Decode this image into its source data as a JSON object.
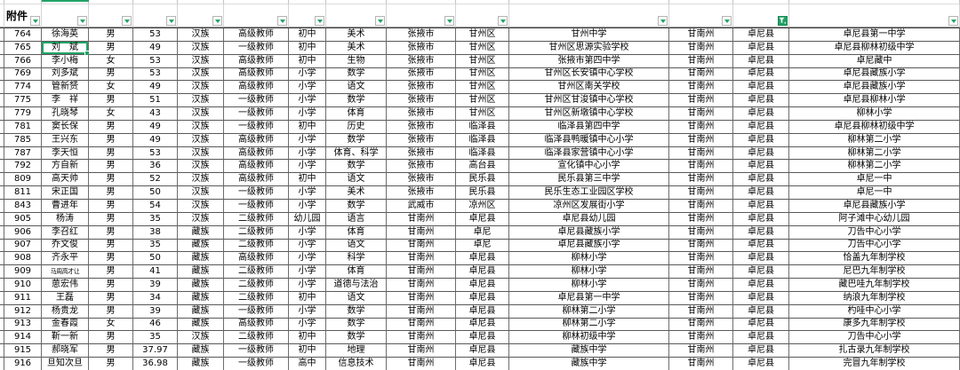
{
  "header": {
    "attachment_label": "附件"
  },
  "filters": {
    "dropdown_count": 14,
    "active_column_index": 12,
    "active_column_value": "卓尼县"
  },
  "selection": {
    "row_index": 1,
    "column_index": 1,
    "row_number": "765"
  },
  "colors": {
    "accent_green": "#21a366"
  },
  "table": {
    "rows": [
      [
        "764",
        "徐海英",
        "男",
        "53",
        "汉族",
        "高级教师",
        "初中",
        "美术",
        "张掖市",
        "甘州区",
        "甘州中学",
        "甘南州",
        "卓尼县",
        "卓尼县第一中学"
      ],
      [
        "765",
        "刘　斌",
        "男",
        "49",
        "汉族",
        "一级教师",
        "初中",
        "美术",
        "张掖市",
        "甘州区",
        "甘州区思源实验学校",
        "甘南州",
        "卓尼县",
        "卓尼县柳林初级中学"
      ],
      [
        "766",
        "李小梅",
        "女",
        "53",
        "汉族",
        "高级教师",
        "初中",
        "生物",
        "张掖市",
        "甘州区",
        "张掖市第四中学",
        "甘南州",
        "卓尼县",
        "卓尼藏中"
      ],
      [
        "769",
        "刘多斌",
        "男",
        "53",
        "汉族",
        "高级教师",
        "小学",
        "数学",
        "张掖市",
        "甘州区",
        "甘州区长安镇中心学校",
        "甘南州",
        "卓尼县",
        "卓尼县藏族小学"
      ],
      [
        "774",
        "管新赟",
        "女",
        "49",
        "汉族",
        "高级教师",
        "小学",
        "语文",
        "张掖市",
        "甘州区",
        "甘州区南关学校",
        "甘南州",
        "卓尼县",
        "卓尼县藏族小学"
      ],
      [
        "775",
        "李　祥",
        "男",
        "51",
        "汉族",
        "一级教师",
        "小学",
        "数学",
        "张掖市",
        "甘州区",
        "甘州区甘浚镇中心学校",
        "甘南州",
        "卓尼县",
        "卓尼县柳林小学"
      ],
      [
        "779",
        "孔晓琴",
        "女",
        "43",
        "汉族",
        "一级教师",
        "小学",
        "体育",
        "张掖市",
        "甘州区",
        "甘州区新墩镇中心学校",
        "甘南州",
        "卓尼县",
        "柳林小学"
      ],
      [
        "781",
        "窦长保",
        "男",
        "49",
        "汉族",
        "一级教师",
        "初中",
        "历史",
        "张掖市",
        "临泽县",
        "临泽县第四中学",
        "甘南州",
        "卓尼县",
        "卓尼县柳林初级中学"
      ],
      [
        "785",
        "王兴东",
        "男",
        "49",
        "汉族",
        "高级教师",
        "小学",
        "数学",
        "张掖市",
        "临泽县",
        "临泽县鸭暖镇中心小学",
        "甘南州",
        "卓尼县",
        "柳林第二小学"
      ],
      [
        "787",
        "李天恒",
        "男",
        "53",
        "汉族",
        "高级教师",
        "小学",
        "体育、科学",
        "张掖市",
        "临泽县",
        "临泽县家营镇中心小学",
        "甘南州",
        "卓尼县",
        "柳林第二小学"
      ],
      [
        "792",
        "方自新",
        "男",
        "36",
        "汉族",
        "高级教师",
        "小学",
        "数学",
        "张掖市",
        "高台县",
        "宣化镇中心小学",
        "甘南州",
        "卓尼县",
        "柳林第二小学"
      ],
      [
        "809",
        "高天帅",
        "男",
        "52",
        "汉族",
        "高级教师",
        "初中",
        "语文",
        "张掖市",
        "民乐县",
        "民乐县第三中学",
        "甘南州",
        "卓尼县",
        "卓尼一中"
      ],
      [
        "811",
        "宋正国",
        "男",
        "50",
        "汉族",
        "一级教师",
        "小学",
        "美术",
        "张掖市",
        "民乐县",
        "民乐生态工业园区学校",
        "甘南州",
        "卓尼县",
        "卓尼一中"
      ],
      [
        "843",
        "曹进年",
        "男",
        "54",
        "汉族",
        "一级教师",
        "小学",
        "数学",
        "武威市",
        "凉州区",
        "凉州区发展街小学",
        "甘南州",
        "卓尼县",
        "卓尼县藏族小学"
      ],
      [
        "905",
        "杨涛",
        "男",
        "35",
        "汉族",
        "二级教师",
        "幼儿园",
        "语言",
        "甘南州",
        "卓尼县",
        "卓尼县幼儿园",
        "甘南州",
        "卓尼县",
        "阿子滩中心幼儿园"
      ],
      [
        "906",
        "李召红",
        "男",
        "38",
        "藏族",
        "二级教师",
        "小学",
        "体育",
        "甘南州",
        "卓尼",
        "卓尼县藏族小学",
        "甘南州",
        "卓尼县",
        "刀告中心小学"
      ],
      [
        "907",
        "乔文俊",
        "男",
        "35",
        "藏族",
        "二级教师",
        "小学",
        "语文",
        "甘南州",
        "卓尼",
        "卓尼县藏族小学",
        "甘南州",
        "卓尼县",
        "刀告中心小学"
      ],
      [
        "908",
        "齐永平",
        "男",
        "50",
        "藏族",
        "高级教师",
        "小学",
        "科学",
        "甘南州",
        "卓尼县",
        "柳林小学",
        "甘南州",
        "卓尼县",
        "恰盖九年制学校"
      ],
      [
        "909",
        "马周高才让",
        "男",
        "41",
        "藏族",
        "二级教师",
        "小学",
        "体育",
        "甘南州",
        "卓尼县",
        "柳林小学",
        "甘南州",
        "卓尼县",
        "尼巴九年制学校"
      ],
      [
        "910",
        "葸宏伟",
        "男",
        "39",
        "藏族",
        "二级教师",
        "小学",
        "道德与法治",
        "甘南州",
        "卓尼县",
        "柳林小学",
        "甘南州",
        "卓尼县",
        "藏巴哇九年制学校"
      ],
      [
        "911",
        "王磊",
        "男",
        "34",
        "藏族",
        "二级教师",
        "初中",
        "语文",
        "甘南州",
        "卓尼县",
        "卓尼县第一中学",
        "甘南州",
        "卓尼县",
        "纳浪九年制学校"
      ],
      [
        "912",
        "杨贵龙",
        "男",
        "39",
        "藏族",
        "一级教师",
        "小学",
        "数学",
        "甘南州",
        "卓尼县",
        "柳林第二小学",
        "甘南州",
        "卓尼县",
        "杓哇中心小学"
      ],
      [
        "913",
        "金春霞",
        "女",
        "46",
        "藏族",
        "高级教师",
        "小学",
        "数学",
        "甘南州",
        "卓尼县",
        "柳林第二小学",
        "甘南州",
        "卓尼县",
        "康多九年制学校"
      ],
      [
        "914",
        "靳一新",
        "男",
        "35",
        "汉族",
        "二级教师",
        "初中",
        "数学",
        "甘南州",
        "卓尼县",
        "柳林初级中学",
        "甘南州",
        "卓尼县",
        "刀告中心小学"
      ],
      [
        "915",
        "郝晓军",
        "男",
        "37.97",
        "藏族",
        "一级教师",
        "初中",
        "地理",
        "甘南州",
        "卓尼县",
        "藏族中学",
        "甘南州",
        "卓尼县",
        "扎古录九年制学校"
      ],
      [
        "916",
        "旦知次旦",
        "男",
        "36.98",
        "藏族",
        "一级教师",
        "高中",
        "信息技术",
        "甘南州",
        "卓尼县",
        "藏族中学",
        "甘南州",
        "卓尼县",
        "完冒九年制学校"
      ]
    ]
  }
}
